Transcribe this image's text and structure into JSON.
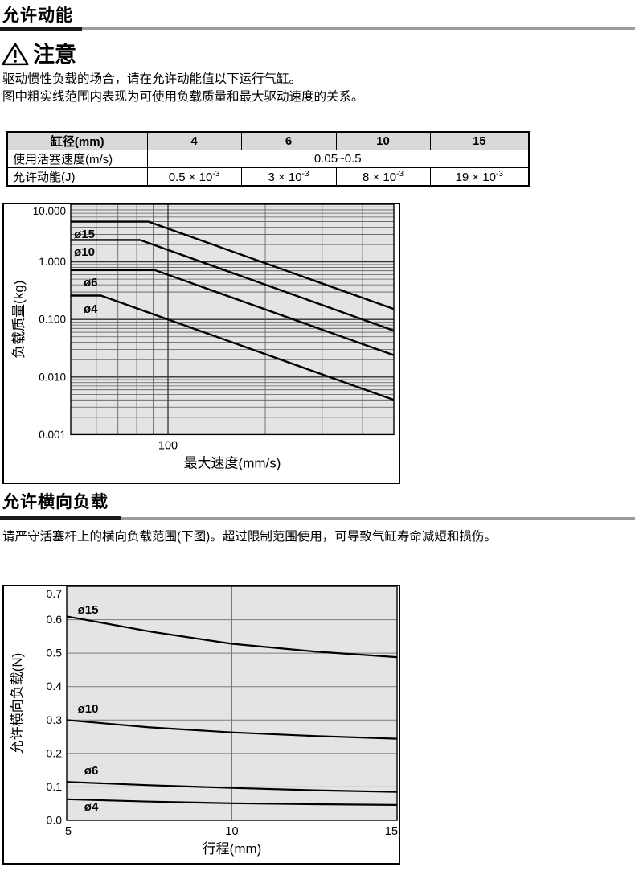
{
  "colors": {
    "plot_bg": "#e4e4e4",
    "table_header_bg": "#d9d9d9",
    "rule_gray": "#9c9c9c",
    "rule_black": "#1a1a1a",
    "grid_minor_chart1": "#5a5a5a",
    "grid_major_chart1": "#303030",
    "grid_chart2": "#7a7a7a",
    "curve": "#000000"
  },
  "section_kinetic": {
    "title": "允许动能",
    "caution_title": "注意",
    "lines": [
      "驱动惯性负载的场合，请在允许动能值以下运行气缸。",
      "图中粗实线范围内表现为可使用负载质量和最大驱动速度的关系。"
    ]
  },
  "spec_table": {
    "header_label": "缸径(mm)",
    "bores": [
      "4",
      "6",
      "10",
      "15"
    ],
    "speed_label": "使用活塞速度(m/s)",
    "speed_value": "0.05~0.5",
    "energy_label": "允许动能(J)",
    "energy_values": [
      {
        "m": "0.5 × 10",
        "e": "-3"
      },
      {
        "m": "3 × 10",
        "e": "-3"
      },
      {
        "m": "8 × 10",
        "e": "-3"
      },
      {
        "m": "19 × 10",
        "e": "-3"
      }
    ]
  },
  "section_lateral": {
    "title": "允许横向负载",
    "line": "请严守活塞杆上的横向负载范围(下图)。超过限制范围使用，可导致气缸寿命减短和损伤。"
  },
  "chart_data": [
    {
      "id": "kinetic-energy-chart",
      "type": "line",
      "x_scale": "log",
      "y_scale": "log",
      "title": "",
      "xlabel": "最大速度(mm/s)",
      "ylabel": "负载质量(kg)",
      "xlim": [
        50,
        500
      ],
      "ylim": [
        0.001,
        10
      ],
      "grid": true,
      "x_tick_labels": [
        {
          "value": 100,
          "label": "100"
        }
      ],
      "y_tick_labels": [
        {
          "value": 10,
          "label": "10.000"
        },
        {
          "value": 1,
          "label": "1.000"
        },
        {
          "value": 0.1,
          "label": "0.100"
        },
        {
          "value": 0.01,
          "label": "0.010"
        },
        {
          "value": 0.001,
          "label": "0.001"
        }
      ],
      "series": [
        {
          "name": "ø15",
          "points": [
            [
              50,
              5.0
            ],
            [
              87,
              5.0
            ],
            [
              500,
              0.152
            ]
          ],
          "label_at": [
            51.2,
            2.6
          ]
        },
        {
          "name": "ø10",
          "points": [
            [
              50,
              2.4
            ],
            [
              82,
              2.4
            ],
            [
              500,
              0.064
            ]
          ],
          "label_at": [
            51.2,
            1.28
          ]
        },
        {
          "name": "ø6",
          "points": [
            [
              50,
              0.72
            ],
            [
              91,
              0.72
            ],
            [
              500,
              0.024
            ]
          ],
          "label_at": [
            54.8,
            0.377
          ]
        },
        {
          "name": "ø4",
          "points": [
            [
              50,
              0.26
            ],
            [
              62,
              0.26
            ],
            [
              500,
              0.004
            ]
          ],
          "label_at": [
            54.8,
            0.13
          ]
        }
      ]
    },
    {
      "id": "lateral-load-chart",
      "type": "line",
      "x_scale": "linear",
      "y_scale": "linear",
      "title": "",
      "xlabel": "行程(mm)",
      "ylabel": "允许横向负载(N)",
      "xlim": [
        5,
        15
      ],
      "ylim": [
        0,
        0.7
      ],
      "grid": true,
      "x_ticks": [
        {
          "value": 5,
          "label": "5"
        },
        {
          "value": 10,
          "label": "10"
        },
        {
          "value": 15,
          "label": "15"
        }
      ],
      "y_ticks": [
        {
          "value": 0.0,
          "label": "0.0"
        },
        {
          "value": 0.1,
          "label": "0.1"
        },
        {
          "value": 0.2,
          "label": "0.2"
        },
        {
          "value": 0.3,
          "label": "0.3"
        },
        {
          "value": 0.4,
          "label": "0.4"
        },
        {
          "value": 0.5,
          "label": "0.5"
        },
        {
          "value": 0.6,
          "label": "0.6"
        },
        {
          "value": 0.7,
          "label": "0.7"
        }
      ],
      "x": [
        5,
        7.5,
        10,
        12.5,
        15
      ],
      "series": [
        {
          "name": "ø15",
          "values": [
            0.61,
            0.565,
            0.528,
            0.505,
            0.488
          ],
          "label_at": [
            5.33,
            0.618
          ]
        },
        {
          "name": "ø10",
          "values": [
            0.3,
            0.278,
            0.263,
            0.252,
            0.244
          ],
          "label_at": [
            5.33,
            0.322
          ]
        },
        {
          "name": "ø6",
          "values": [
            0.115,
            0.105,
            0.097,
            0.09,
            0.085
          ],
          "label_at": [
            5.53,
            0.137
          ]
        },
        {
          "name": "ø4",
          "values": [
            0.063,
            0.056,
            0.051,
            0.048,
            0.046
          ],
          "label_at": [
            5.53,
            0.029
          ]
        }
      ]
    }
  ]
}
